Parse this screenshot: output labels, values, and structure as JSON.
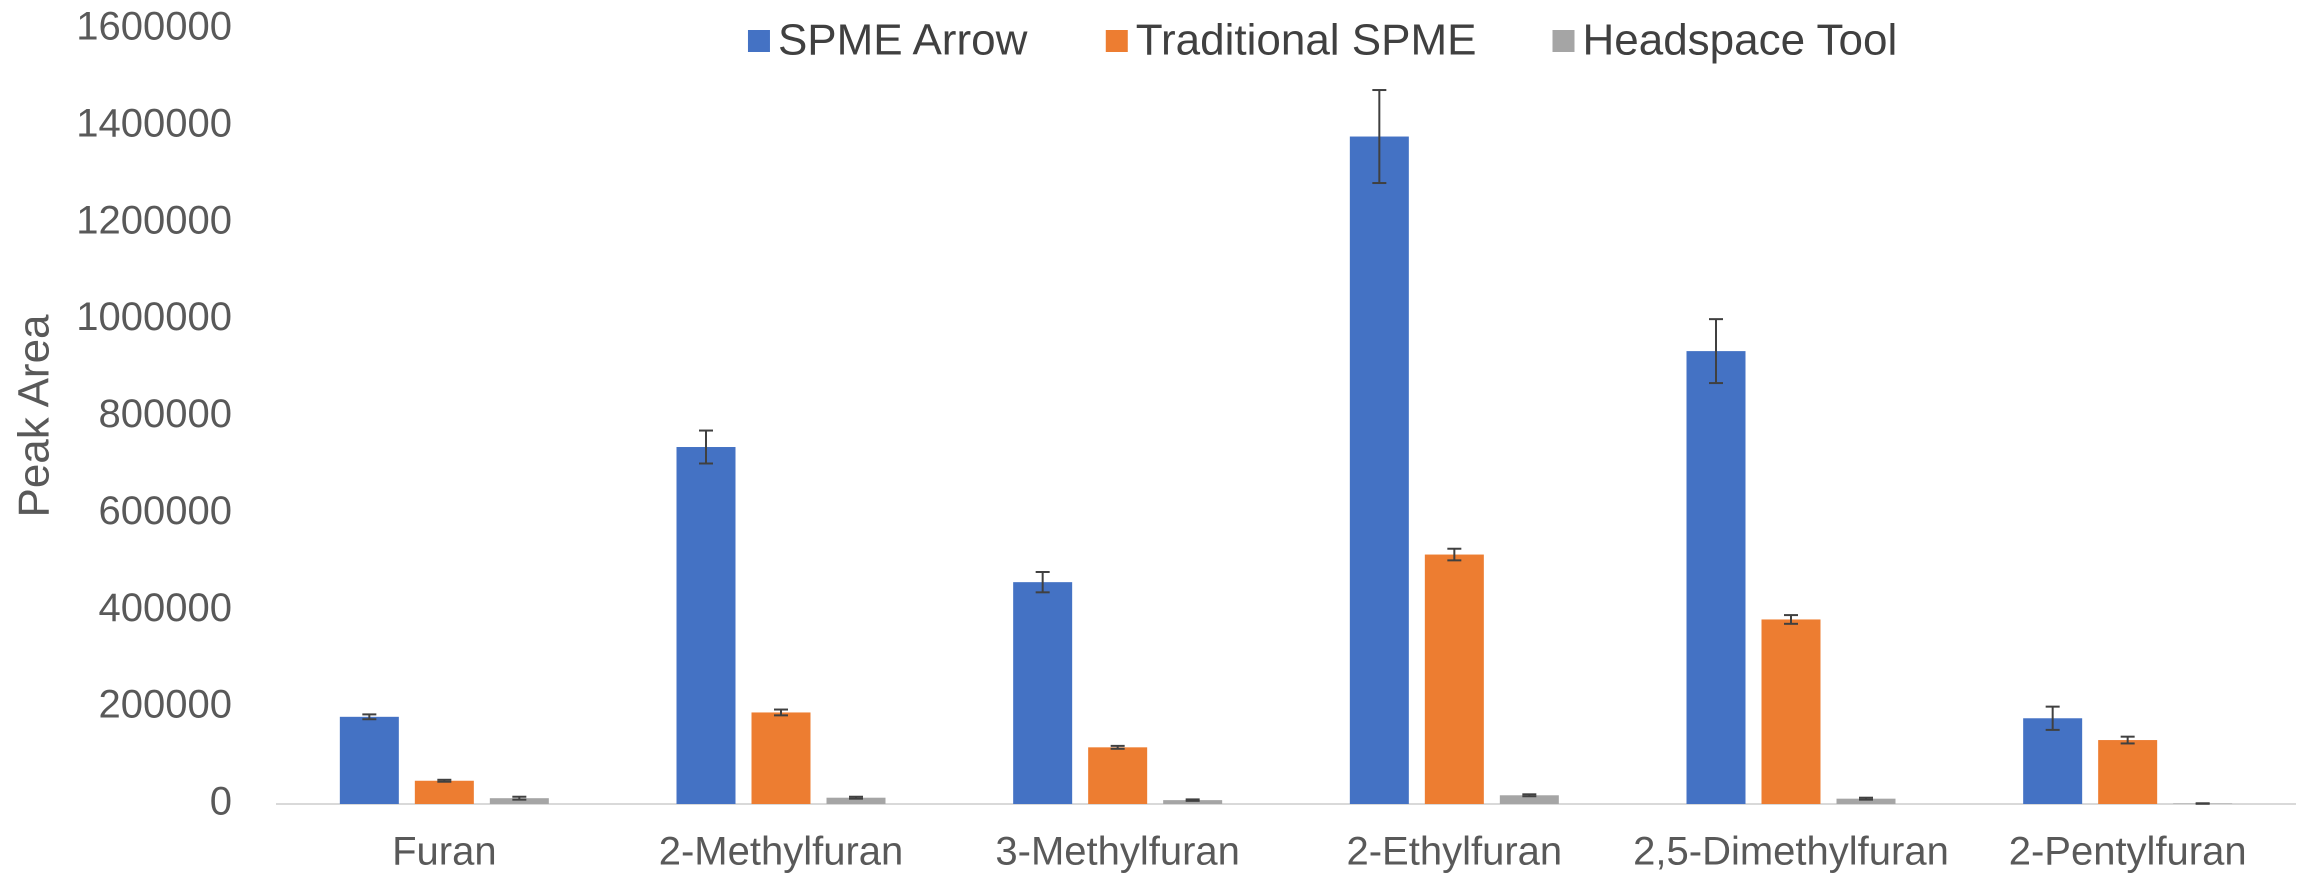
{
  "chart_data": {
    "type": "bar",
    "y_label": "Peak Area",
    "categories": [
      "Furan",
      "2-Methylfuran",
      "3-Methylfuran",
      "2-Ethylfuran",
      "2,5-Dimethylfuran",
      "2-Pentylfuran"
    ],
    "series": [
      {
        "name": "SPME Arrow",
        "color": "#4472c4",
        "values": [
          180000,
          737000,
          458000,
          1378000,
          935000,
          177000
        ],
        "errors": [
          5000,
          34000,
          21000,
          96000,
          66000,
          24000
        ]
      },
      {
        "name": "Traditional SPME",
        "color": "#ed7d31",
        "values": [
          48000,
          189000,
          117000,
          515000,
          381000,
          132000
        ],
        "errors": [
          2000,
          6000,
          3000,
          12000,
          9000,
          7000
        ]
      },
      {
        "name": "Headspace Tool",
        "color": "#a5a5a5",
        "values": [
          12000,
          13000,
          8000,
          18000,
          11000,
          1000
        ],
        "errors": [
          3000,
          2000,
          1500,
          2000,
          2000,
          500
        ]
      }
    ],
    "ylim": [
      0,
      1600000
    ],
    "yticks": [
      0,
      200000,
      400000,
      600000,
      800000,
      1000000,
      1200000,
      1400000,
      1600000
    ],
    "grid": false,
    "legend": "top"
  }
}
